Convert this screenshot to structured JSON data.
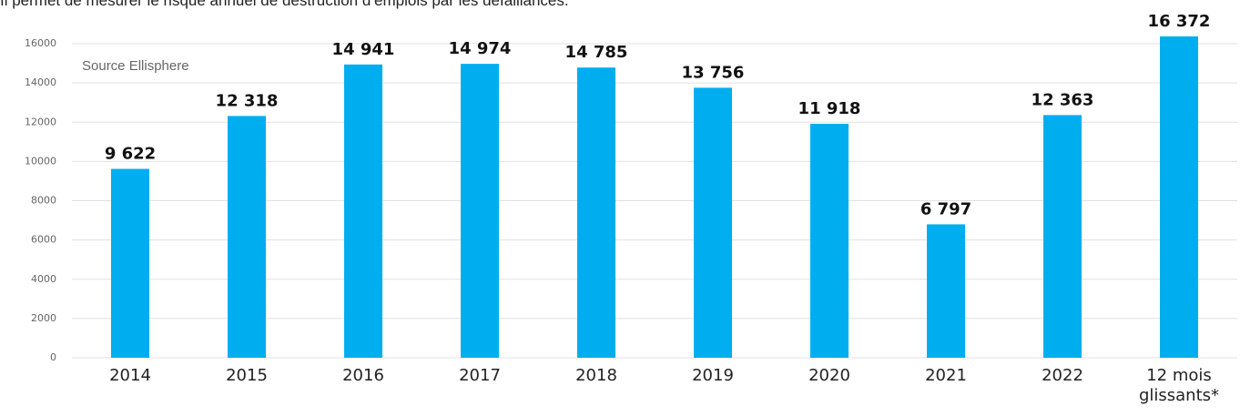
{
  "intro": "Il permet de mesurer le risque annuel de destruction d’emplois par les défaillances.",
  "chart_data": {
    "type": "bar",
    "annotation": "Source Ellisphere",
    "categories": [
      "2014",
      "2015",
      "2016",
      "2017",
      "2018",
      "2019",
      "2020",
      "2021",
      "2022",
      "12 mois glissants*"
    ],
    "values": [
      9622,
      12318,
      14941,
      14974,
      14785,
      13756,
      11918,
      6797,
      12363,
      16372
    ],
    "value_labels": [
      "9 622",
      "12 318",
      "14 941",
      "14 974",
      "14 785",
      "13 756",
      "11 918",
      "6 797",
      "12 363",
      "16 372"
    ],
    "color": "#00aeef",
    "ylim": [
      0,
      16000
    ],
    "yticks": [
      0,
      2000,
      4000,
      6000,
      8000,
      10000,
      12000,
      14000,
      16000
    ],
    "grid": true
  }
}
